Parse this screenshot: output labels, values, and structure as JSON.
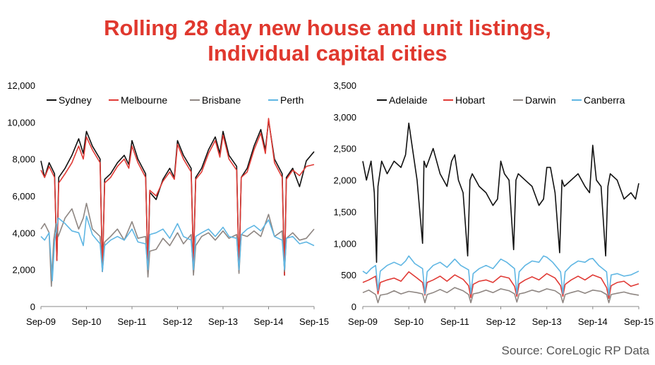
{
  "title_line1": "Rolling 28 day new house and unit listings,",
  "title_line2": "Individual capital cities",
  "source": "Source: CoreLogic RP Data",
  "colors": {
    "title": "#e0382e",
    "black": "#111111",
    "red": "#e03a35",
    "grey": "#8e8682",
    "blue": "#5fb6e3"
  },
  "chart_data": [
    {
      "type": "line",
      "title": "",
      "xlabel": "",
      "ylabel": "",
      "ylim": [
        0,
        12000
      ],
      "yticks": [
        0,
        2000,
        4000,
        6000,
        8000,
        10000,
        12000
      ],
      "ytick_labels": [
        "0",
        "2,000",
        "4,000",
        "6,000",
        "8,000",
        "10,000",
        "12,000"
      ],
      "xlim": [
        2009.67,
        2015.67
      ],
      "xticks": [
        2009.67,
        2010.67,
        2011.67,
        2012.67,
        2013.67,
        2014.67,
        2015.67
      ],
      "xtick_labels": [
        "Sep-09",
        "Sep-10",
        "Sep-11",
        "Sep-12",
        "Sep-13",
        "Sep-14",
        "Sep-15"
      ],
      "grid": false,
      "legend": "top",
      "series": [
        {
          "name": "Sydney",
          "color": "#111111",
          "x": [
            2009.67,
            2009.75,
            2009.85,
            2009.97,
            2010.02,
            2010.06,
            2010.2,
            2010.35,
            2010.5,
            2010.6,
            2010.67,
            2010.8,
            2010.97,
            2011.02,
            2011.07,
            2011.2,
            2011.35,
            2011.5,
            2011.6,
            2011.67,
            2011.8,
            2011.97,
            2012.02,
            2012.06,
            2012.2,
            2012.35,
            2012.5,
            2012.6,
            2012.67,
            2012.8,
            2012.97,
            2013.02,
            2013.07,
            2013.2,
            2013.35,
            2013.5,
            2013.6,
            2013.67,
            2013.8,
            2013.97,
            2014.02,
            2014.07,
            2014.2,
            2014.35,
            2014.5,
            2014.6,
            2014.67,
            2014.8,
            2014.97,
            2015.02,
            2015.06,
            2015.2,
            2015.35,
            2015.5,
            2015.67
          ],
          "y": [
            7900,
            7000,
            7800,
            7200,
            2500,
            7000,
            7500,
            8200,
            9100,
            8300,
            9500,
            8700,
            8000,
            1900,
            6900,
            7200,
            7800,
            8200,
            7700,
            9000,
            8000,
            7200,
            2000,
            6200,
            5800,
            6900,
            7500,
            7000,
            9000,
            8200,
            7500,
            2400,
            7000,
            7500,
            8500,
            9200,
            8300,
            9500,
            8200,
            7600,
            1900,
            7000,
            7500,
            8700,
            9600,
            8500,
            10100,
            8000,
            7200,
            1700,
            7000,
            7500,
            6500,
            7900,
            8400
          ]
        },
        {
          "name": "Melbourne",
          "color": "#e03a35",
          "x": [
            2009.67,
            2009.75,
            2009.85,
            2009.97,
            2010.02,
            2010.06,
            2010.2,
            2010.35,
            2010.5,
            2010.6,
            2010.67,
            2010.8,
            2010.97,
            2011.02,
            2011.07,
            2011.2,
            2011.35,
            2011.5,
            2011.6,
            2011.67,
            2011.8,
            2011.97,
            2012.02,
            2012.06,
            2012.2,
            2012.35,
            2012.5,
            2012.6,
            2012.67,
            2012.8,
            2012.97,
            2013.02,
            2013.07,
            2013.2,
            2013.35,
            2013.5,
            2013.6,
            2013.67,
            2013.8,
            2013.97,
            2014.02,
            2014.07,
            2014.2,
            2014.35,
            2014.5,
            2014.6,
            2014.67,
            2014.8,
            2014.97,
            2015.02,
            2015.06,
            2015.2,
            2015.35,
            2015.5,
            2015.67
          ],
          "y": [
            7400,
            7000,
            7600,
            7000,
            2500,
            6700,
            7200,
            7800,
            8700,
            8000,
            9200,
            8500,
            7800,
            1900,
            6700,
            7000,
            7600,
            8000,
            7500,
            8700,
            7800,
            7000,
            2100,
            6300,
            6000,
            6800,
            7300,
            6900,
            8800,
            8000,
            7300,
            2400,
            6900,
            7300,
            8300,
            9000,
            8100,
            9300,
            8000,
            7400,
            1900,
            7000,
            7300,
            8500,
            9400,
            8300,
            10200,
            7800,
            7000,
            1700,
            6900,
            7400,
            7100,
            7600,
            7700
          ]
        },
        {
          "name": "Brisbane",
          "color": "#8e8682",
          "x": [
            2009.67,
            2009.75,
            2009.85,
            2009.9,
            2009.95,
            2010.0,
            2010.05,
            2010.2,
            2010.35,
            2010.5,
            2010.6,
            2010.67,
            2010.8,
            2010.97,
            2011.02,
            2011.07,
            2011.2,
            2011.35,
            2011.5,
            2011.67,
            2011.8,
            2011.97,
            2012.02,
            2012.06,
            2012.2,
            2012.35,
            2012.5,
            2012.67,
            2012.8,
            2012.97,
            2013.02,
            2013.07,
            2013.2,
            2013.35,
            2013.5,
            2013.67,
            2013.8,
            2013.97,
            2014.02,
            2014.07,
            2014.2,
            2014.35,
            2014.5,
            2014.67,
            2014.8,
            2014.97,
            2015.02,
            2015.06,
            2015.2,
            2015.35,
            2015.5,
            2015.67
          ],
          "y": [
            4200,
            4500,
            4000,
            1100,
            3600,
            4500,
            3800,
            4800,
            5300,
            4200,
            4800,
            5600,
            4200,
            3800,
            1900,
            3500,
            3800,
            4200,
            3600,
            4600,
            3700,
            3800,
            1600,
            3000,
            3100,
            3700,
            3300,
            4000,
            3400,
            3900,
            1700,
            3300,
            3800,
            4000,
            3600,
            4100,
            3700,
            3900,
            1800,
            3900,
            3800,
            4100,
            3800,
            5000,
            3800,
            4100,
            1900,
            3700,
            4000,
            3600,
            3700,
            4200
          ]
        },
        {
          "name": "Perth",
          "color": "#5fb6e3",
          "x": [
            2009.67,
            2009.75,
            2009.85,
            2009.92,
            2009.97,
            2010.05,
            2010.2,
            2010.35,
            2010.5,
            2010.6,
            2010.67,
            2010.8,
            2010.97,
            2011.02,
            2011.07,
            2011.2,
            2011.35,
            2011.5,
            2011.67,
            2011.8,
            2011.97,
            2012.02,
            2012.06,
            2012.2,
            2012.35,
            2012.5,
            2012.67,
            2012.8,
            2012.97,
            2013.02,
            2013.07,
            2013.2,
            2013.35,
            2013.5,
            2013.67,
            2013.8,
            2013.97,
            2014.02,
            2014.07,
            2014.2,
            2014.35,
            2014.5,
            2014.67,
            2014.8,
            2014.97,
            2015.02,
            2015.06,
            2015.2,
            2015.35,
            2015.5,
            2015.67
          ],
          "y": [
            3800,
            3600,
            4000,
            1400,
            3500,
            4800,
            4500,
            4100,
            4000,
            3300,
            4900,
            3900,
            3400,
            1900,
            3300,
            3600,
            3800,
            3600,
            4200,
            3500,
            3400,
            2000,
            3900,
            4000,
            4200,
            3700,
            4500,
            3800,
            3600,
            2000,
            3800,
            4000,
            4200,
            3800,
            4300,
            3800,
            3700,
            2000,
            3900,
            4200,
            4400,
            4100,
            4700,
            3800,
            3600,
            2000,
            3700,
            3800,
            3400,
            3500,
            3300
          ]
        }
      ]
    },
    {
      "type": "line",
      "title": "",
      "xlabel": "",
      "ylabel": "",
      "ylim": [
        0,
        3500
      ],
      "yticks": [
        0,
        500,
        1000,
        1500,
        2000,
        2500,
        3000,
        3500
      ],
      "ytick_labels": [
        "0",
        "500",
        "1,000",
        "1,500",
        "2,000",
        "2,500",
        "3,000",
        "3,500"
      ],
      "xlim": [
        2009.67,
        2015.67
      ],
      "xticks": [
        2009.67,
        2010.67,
        2011.67,
        2012.67,
        2013.67,
        2014.67,
        2015.67
      ],
      "xtick_labels": [
        "Sep-09",
        "Sep-10",
        "Sep-11",
        "Sep-12",
        "Sep-13",
        "Sep-14",
        "Sep-15"
      ],
      "grid": false,
      "legend": "top",
      "series": [
        {
          "name": "Adelaide",
          "color": "#111111",
          "x": [
            2009.67,
            2009.75,
            2009.85,
            2009.92,
            2009.97,
            2010.0,
            2010.08,
            2010.2,
            2010.35,
            2010.5,
            2010.6,
            2010.67,
            2010.75,
            2010.85,
            2010.97,
            2011.0,
            2011.05,
            2011.2,
            2011.35,
            2011.5,
            2011.6,
            2011.67,
            2011.75,
            2011.85,
            2011.95,
            2012.0,
            2012.05,
            2012.2,
            2012.35,
            2012.5,
            2012.6,
            2012.67,
            2012.75,
            2012.85,
            2012.95,
            2013.0,
            2013.05,
            2013.2,
            2013.35,
            2013.5,
            2013.6,
            2013.67,
            2013.75,
            2013.85,
            2013.95,
            2014.0,
            2014.05,
            2014.2,
            2014.35,
            2014.5,
            2014.6,
            2014.67,
            2014.75,
            2014.85,
            2014.95,
            2015.0,
            2015.05,
            2015.2,
            2015.35,
            2015.5,
            2015.6,
            2015.67
          ],
          "y": [
            2300,
            2000,
            2300,
            1800,
            700,
            1900,
            2300,
            2100,
            2300,
            2200,
            2400,
            2900,
            2500,
            2000,
            1000,
            2300,
            2200,
            2500,
            2100,
            1900,
            2300,
            2400,
            2000,
            1800,
            800,
            2000,
            2100,
            1900,
            1800,
            1600,
            1700,
            2300,
            2100,
            2000,
            900,
            2000,
            2100,
            2000,
            1900,
            1600,
            1700,
            2200,
            2200,
            1800,
            850,
            2000,
            1900,
            2000,
            2100,
            1900,
            1800,
            2550,
            2000,
            1900,
            800,
            1900,
            2100,
            2000,
            1700,
            1800,
            1700,
            1950
          ]
        },
        {
          "name": "Hobart",
          "color": "#e03a35",
          "x": [
            2009.67,
            2009.8,
            2009.95,
            2010.0,
            2010.05,
            2010.2,
            2010.35,
            2010.5,
            2010.67,
            2010.85,
            2010.97,
            2011.02,
            2011.07,
            2011.2,
            2011.35,
            2011.5,
            2011.67,
            2011.85,
            2011.97,
            2012.02,
            2012.07,
            2012.2,
            2012.35,
            2012.5,
            2012.67,
            2012.85,
            2012.97,
            2013.02,
            2013.07,
            2013.2,
            2013.35,
            2013.5,
            2013.67,
            2013.85,
            2013.97,
            2014.02,
            2014.07,
            2014.2,
            2014.35,
            2014.5,
            2014.67,
            2014.85,
            2014.97,
            2015.02,
            2015.07,
            2015.2,
            2015.35,
            2015.5,
            2015.67
          ],
          "y": [
            380,
            420,
            480,
            200,
            380,
            420,
            450,
            400,
            550,
            450,
            380,
            180,
            380,
            420,
            480,
            400,
            500,
            430,
            330,
            140,
            350,
            400,
            420,
            380,
            480,
            450,
            320,
            160,
            360,
            420,
            470,
            420,
            520,
            450,
            330,
            160,
            350,
            420,
            480,
            420,
            500,
            450,
            300,
            130,
            330,
            380,
            400,
            320,
            360
          ]
        },
        {
          "name": "Darwin",
          "color": "#8e8682",
          "x": [
            2009.67,
            2009.8,
            2009.95,
            2010.0,
            2010.05,
            2010.2,
            2010.35,
            2010.5,
            2010.67,
            2010.85,
            2010.97,
            2011.02,
            2011.07,
            2011.2,
            2011.35,
            2011.5,
            2011.67,
            2011.85,
            2011.97,
            2012.02,
            2012.07,
            2012.2,
            2012.35,
            2012.5,
            2012.67,
            2012.85,
            2012.97,
            2013.02,
            2013.07,
            2013.2,
            2013.35,
            2013.5,
            2013.67,
            2013.85,
            2013.97,
            2014.02,
            2014.07,
            2014.2,
            2014.35,
            2014.5,
            2014.67,
            2014.85,
            2014.97,
            2015.02,
            2015.07,
            2015.2,
            2015.35,
            2015.5,
            2015.67
          ],
          "y": [
            220,
            260,
            190,
            60,
            180,
            200,
            250,
            200,
            240,
            220,
            200,
            60,
            190,
            220,
            270,
            220,
            300,
            250,
            190,
            60,
            200,
            220,
            260,
            220,
            280,
            250,
            200,
            70,
            200,
            220,
            260,
            230,
            280,
            250,
            190,
            60,
            190,
            220,
            250,
            210,
            260,
            240,
            190,
            60,
            190,
            210,
            230,
            200,
            180
          ]
        },
        {
          "name": "Canberra",
          "color": "#5fb6e3",
          "x": [
            2009.67,
            2009.75,
            2009.85,
            2009.95,
            2010.0,
            2010.05,
            2010.2,
            2010.35,
            2010.5,
            2010.6,
            2010.67,
            2010.8,
            2010.97,
            2011.02,
            2011.07,
            2011.2,
            2011.35,
            2011.5,
            2011.67,
            2011.8,
            2011.97,
            2012.02,
            2012.07,
            2012.2,
            2012.35,
            2012.5,
            2012.67,
            2012.8,
            2012.97,
            2013.02,
            2013.07,
            2013.2,
            2013.35,
            2013.5,
            2013.6,
            2013.67,
            2013.8,
            2013.97,
            2014.02,
            2014.07,
            2014.2,
            2014.35,
            2014.5,
            2014.6,
            2014.67,
            2014.8,
            2014.97,
            2015.02,
            2015.07,
            2015.2,
            2015.35,
            2015.5,
            2015.67
          ],
          "y": [
            560,
            520,
            600,
            650,
            250,
            560,
            650,
            700,
            650,
            720,
            800,
            680,
            600,
            200,
            550,
            650,
            700,
            620,
            750,
            650,
            580,
            200,
            520,
            600,
            650,
            600,
            750,
            700,
            600,
            200,
            550,
            650,
            720,
            700,
            800,
            780,
            700,
            550,
            200,
            550,
            650,
            720,
            700,
            750,
            760,
            650,
            550,
            180,
            500,
            520,
            480,
            500,
            560
          ]
        }
      ]
    }
  ]
}
